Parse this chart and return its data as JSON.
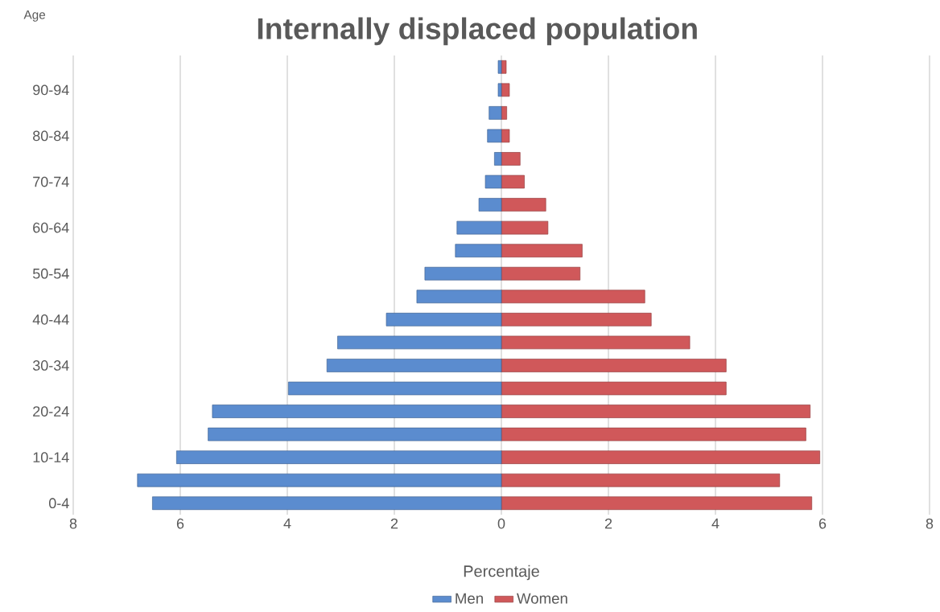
{
  "chart_data": {
    "type": "bar",
    "orientation": "horizontal",
    "stacked": true,
    "title": "Internally displaced population",
    "xlabel": "Percentaje",
    "ylabel": "Age",
    "categories": [
      null,
      "90-94",
      null,
      "80-84",
      null,
      "70-74",
      null,
      "60-64",
      null,
      "50-54",
      null,
      "40-44",
      null,
      "30-34",
      null,
      "20-24",
      null,
      "10-14",
      null,
      "0-4"
    ],
    "series": [
      {
        "name": "Men",
        "color": "#5b8ccf",
        "values": [
          -0.06,
          -0.06,
          -0.23,
          -0.26,
          -0.13,
          -0.3,
          -0.42,
          -0.83,
          -0.86,
          -1.43,
          -1.58,
          -2.15,
          -3.06,
          -3.26,
          -3.98,
          -5.4,
          -5.48,
          -6.07,
          -6.8,
          -6.52
        ]
      },
      {
        "name": "Women",
        "color": "#d0585a",
        "values": [
          0.09,
          0.15,
          0.1,
          0.15,
          0.35,
          0.43,
          0.83,
          0.87,
          1.51,
          1.47,
          2.68,
          2.8,
          3.52,
          4.2,
          4.2,
          5.77,
          5.69,
          5.95,
          5.2,
          5.8
        ]
      }
    ],
    "xlim": [
      -8,
      8
    ],
    "xticks": [
      {
        "value": -8,
        "label": "8"
      },
      {
        "value": -6,
        "label": "6"
      },
      {
        "value": -4,
        "label": "4"
      },
      {
        "value": -2,
        "label": "2"
      },
      0,
      2,
      4,
      6,
      8
    ],
    "grid": "x",
    "legend": "bottom"
  }
}
